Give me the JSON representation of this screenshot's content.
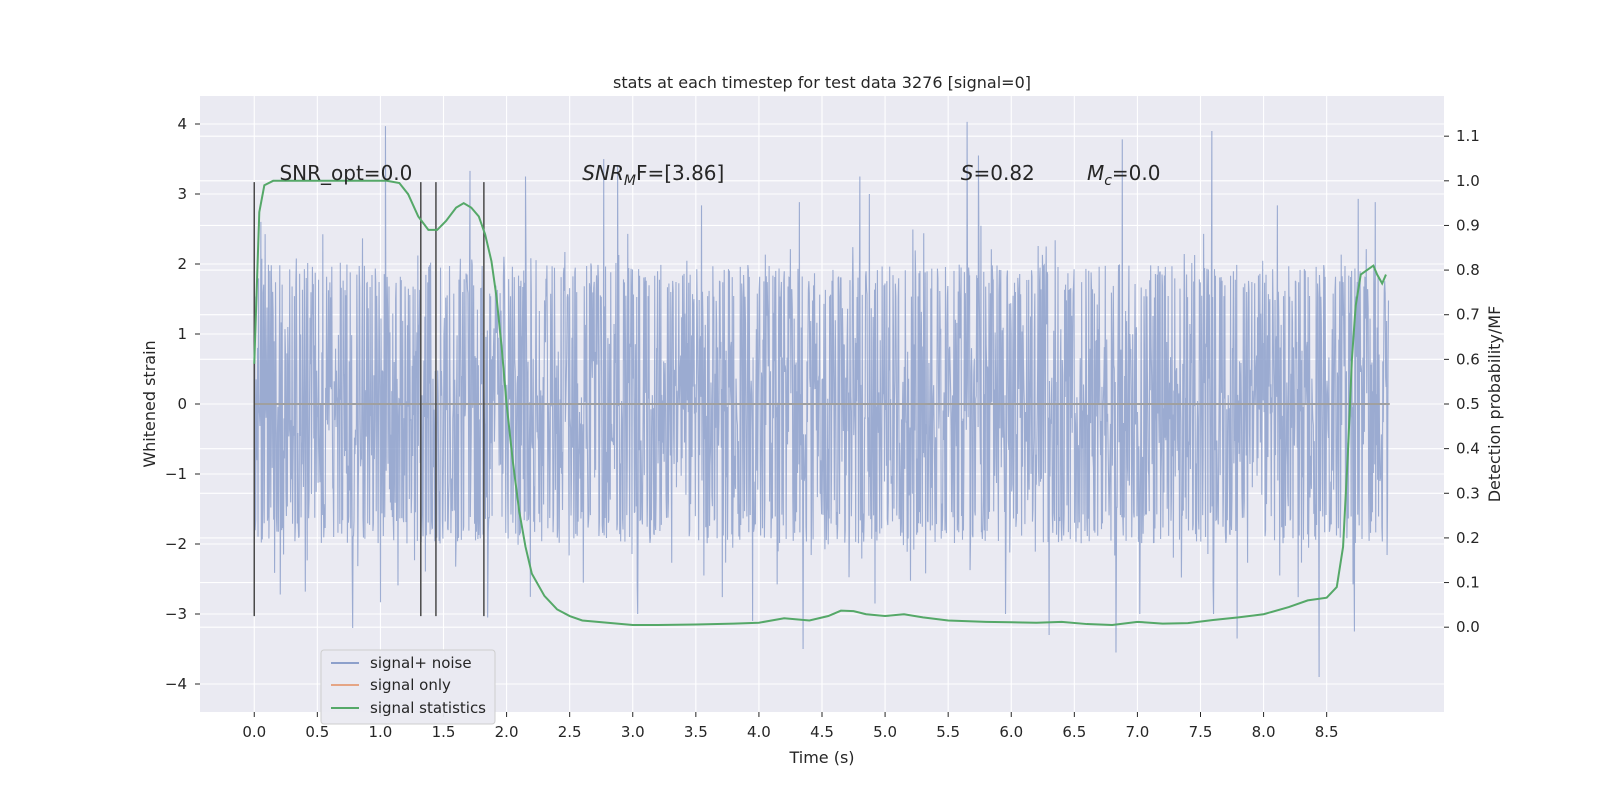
{
  "chart_data": {
    "type": "line",
    "title": "stats at each timestep for test data 3276 [signal=0]",
    "xlabel": "Time (s)",
    "ylabel": "Whitened strain",
    "ylabel_right": "Detection probability/MF",
    "xlim": [
      -0.43,
      9.43
    ],
    "ylim": [
      -4.4,
      4.4
    ],
    "ylim_right": [
      -0.19,
      1.19
    ],
    "x_ticks": [
      0.0,
      0.5,
      1.0,
      1.5,
      2.0,
      2.5,
      3.0,
      3.5,
      4.0,
      4.5,
      5.0,
      5.5,
      6.0,
      6.5,
      7.0,
      7.5,
      8.0,
      8.5
    ],
    "x_tick_labels": [
      "0.0",
      "0.5",
      "1.0",
      "1.5",
      "2.0",
      "2.5",
      "3.0",
      "3.5",
      "4.0",
      "4.5",
      "5.0",
      "5.5",
      "6.0",
      "6.5",
      "7.0",
      "7.5",
      "8.0",
      "8.5"
    ],
    "y_ticks": [
      4,
      3,
      2,
      1,
      0,
      -1,
      -2,
      -3,
      -4
    ],
    "y_tick_labels": [
      "4",
      "3",
      "2",
      "1",
      "0",
      "−1",
      "−2",
      "−3",
      "−4"
    ],
    "y_ticks_right": [
      1.1,
      1.0,
      0.9,
      0.8,
      0.7,
      0.6,
      0.5,
      0.4,
      0.3,
      0.2,
      0.1,
      0.0
    ],
    "y_tick_labels_right": [
      "1.1",
      "1.0",
      "0.9",
      "0.8",
      "0.7",
      "0.6",
      "0.5",
      "0.4",
      "0.3",
      "0.2",
      "0.1",
      "0.0"
    ],
    "grid": true,
    "legend_position": "lower-left",
    "noise_series": {
      "name": "signal+ noise",
      "color": "#8da0cb",
      "x_range": [
        0.0,
        8.99
      ],
      "typical_envelope": [
        -1.9,
        1.9
      ],
      "peaks": [
        {
          "x": 1.04,
          "y": 3.97
        },
        {
          "x": 5.65,
          "y": 4.03
        },
        {
          "x": 7.59,
          "y": 3.9
        },
        {
          "x": 6.88,
          "y": 3.78
        },
        {
          "x": 5.74,
          "y": 3.55
        },
        {
          "x": 2.77,
          "y": 3.5
        },
        {
          "x": 2.88,
          "y": 3.4
        },
        {
          "x": 0.78,
          "y": 3.26
        },
        {
          "x": 1.71,
          "y": 3.33
        },
        {
          "x": 4.8,
          "y": 3.25
        },
        {
          "x": 2.15,
          "y": 3.25
        },
        {
          "x": 8.75,
          "y": 2.93
        },
        {
          "x": 0.78,
          "y": -3.2
        },
        {
          "x": 4.35,
          "y": -3.5
        },
        {
          "x": 6.3,
          "y": -3.3
        },
        {
          "x": 6.83,
          "y": -3.55
        },
        {
          "x": 7.79,
          "y": -3.35
        },
        {
          "x": 8.44,
          "y": -3.9
        },
        {
          "x": 8.72,
          "y": -3.25
        },
        {
          "x": 1.85,
          "y": -3.05
        },
        {
          "x": 3.95,
          "y": -3.1
        },
        {
          "x": 4.92,
          "y": -2.85
        }
      ]
    },
    "series": [
      {
        "name": "signal only",
        "color": "#e5a585",
        "x": [
          0.0,
          9.0
        ],
        "y": [
          0.0,
          0.0
        ]
      },
      {
        "name": "signal statistics",
        "color": "#55a868",
        "axis": "right",
        "x": [
          0.0,
          0.04,
          0.08,
          0.15,
          0.25,
          0.4,
          0.6,
          0.8,
          0.95,
          1.05,
          1.15,
          1.22,
          1.3,
          1.38,
          1.45,
          1.52,
          1.6,
          1.66,
          1.72,
          1.78,
          1.83,
          1.88,
          1.92,
          1.96,
          2.0,
          2.05,
          2.1,
          2.15,
          2.2,
          2.3,
          2.4,
          2.5,
          2.6,
          2.8,
          3.0,
          3.2,
          3.5,
          3.8,
          4.0,
          4.2,
          4.4,
          4.55,
          4.65,
          4.75,
          4.85,
          5.0,
          5.15,
          5.3,
          5.5,
          5.8,
          6.0,
          6.2,
          6.4,
          6.6,
          6.8,
          7.0,
          7.2,
          7.4,
          7.6,
          7.8,
          8.0,
          8.2,
          8.35,
          8.5,
          8.58,
          8.63,
          8.67,
          8.7,
          8.73,
          8.77,
          8.82,
          8.87,
          8.9,
          8.94,
          8.97
        ],
        "y": [
          0.59,
          0.93,
          0.99,
          1.0,
          1.0,
          1.0,
          1.0,
          1.0,
          1.0,
          1.0,
          0.995,
          0.97,
          0.92,
          0.89,
          0.89,
          0.91,
          0.94,
          0.95,
          0.94,
          0.92,
          0.88,
          0.82,
          0.74,
          0.63,
          0.5,
          0.37,
          0.26,
          0.18,
          0.12,
          0.07,
          0.04,
          0.025,
          0.015,
          0.01,
          0.005,
          0.005,
          0.006,
          0.008,
          0.01,
          0.02,
          0.015,
          0.025,
          0.037,
          0.036,
          0.029,
          0.025,
          0.029,
          0.022,
          0.015,
          0.012,
          0.011,
          0.01,
          0.012,
          0.007,
          0.005,
          0.012,
          0.008,
          0.009,
          0.016,
          0.022,
          0.029,
          0.045,
          0.06,
          0.066,
          0.09,
          0.18,
          0.4,
          0.6,
          0.72,
          0.79,
          0.8,
          0.81,
          0.79,
          0.77,
          0.79
        ]
      }
    ],
    "markers": {
      "color": "#4a4a4a",
      "x": [
        0.0,
        1.32,
        1.44,
        1.82
      ],
      "y_from": -3.03,
      "y_to": 3.17
    },
    "annotations": [
      {
        "text": "SNR_opt=0.0",
        "x": 0.2,
        "y": 3.2,
        "math": false
      },
      {
        "text": "SNR",
        "sub": "M",
        "rest": "F=[3.86]",
        "x": 2.6,
        "y": 3.2,
        "math": true
      },
      {
        "text": "S",
        "sub": "",
        "rest": "=0.82",
        "x": 5.6,
        "y": 3.2,
        "math": true
      },
      {
        "text": "M",
        "sub": "c",
        "rest": "=0.0",
        "x": 6.6,
        "y": 3.2,
        "math": true
      }
    ]
  }
}
